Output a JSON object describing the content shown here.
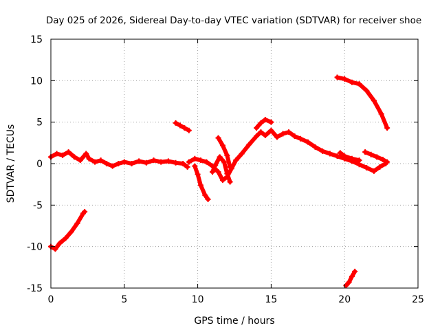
{
  "chart_data": {
    "type": "scatter",
    "title": "Day 025 of 2026, Sidereal Day-to-day VTEC variation (SDTVAR) for receiver shoe",
    "xlabel": "GPS time / hours",
    "ylabel": "SDTVAR / TECUs",
    "xlim": [
      0,
      25
    ],
    "ylim": [
      -15,
      15
    ],
    "xticks": [
      0,
      5,
      10,
      15,
      20,
      25
    ],
    "yticks": [
      -15,
      -10,
      -5,
      0,
      5,
      10,
      15
    ],
    "grid": true,
    "series_color": "#ff0000",
    "series": [
      {
        "name": "main-trace-a",
        "points": [
          [
            0.0,
            0.8
          ],
          [
            0.4,
            1.2
          ],
          [
            0.8,
            1.0
          ],
          [
            1.2,
            1.4
          ],
          [
            1.6,
            0.8
          ],
          [
            2.0,
            0.4
          ],
          [
            2.4,
            1.2
          ],
          [
            2.6,
            0.6
          ],
          [
            3.0,
            0.2
          ],
          [
            3.4,
            0.4
          ],
          [
            3.8,
            0.0
          ],
          [
            4.2,
            -0.3
          ],
          [
            4.6,
            0.0
          ],
          [
            5.0,
            0.2
          ],
          [
            5.5,
            0.0
          ],
          [
            6.0,
            0.3
          ],
          [
            6.5,
            0.1
          ],
          [
            7.0,
            0.4
          ],
          [
            7.5,
            0.2
          ],
          [
            8.0,
            0.3
          ],
          [
            8.5,
            0.1
          ],
          [
            9.0,
            0.0
          ],
          [
            9.3,
            -0.4
          ]
        ]
      },
      {
        "name": "main-trace-b",
        "points": [
          [
            9.4,
            0.2
          ],
          [
            9.8,
            0.6
          ],
          [
            10.2,
            0.4
          ],
          [
            10.6,
            0.2
          ],
          [
            11.0,
            -0.3
          ],
          [
            11.4,
            -1.0
          ],
          [
            11.7,
            -2.0
          ],
          [
            12.0,
            -1.6
          ],
          [
            12.3,
            -0.6
          ],
          [
            12.6,
            0.4
          ],
          [
            13.0,
            1.2
          ],
          [
            13.5,
            2.3
          ],
          [
            14.0,
            3.3
          ],
          [
            14.3,
            3.8
          ],
          [
            14.6,
            3.4
          ],
          [
            15.0,
            4.0
          ],
          [
            15.4,
            3.2
          ],
          [
            15.8,
            3.6
          ],
          [
            16.2,
            3.8
          ],
          [
            16.6,
            3.3
          ],
          [
            17.0,
            3.0
          ],
          [
            17.5,
            2.6
          ],
          [
            18.0,
            2.0
          ],
          [
            18.5,
            1.5
          ],
          [
            19.0,
            1.2
          ],
          [
            19.5,
            0.9
          ],
          [
            20.0,
            0.6
          ],
          [
            20.5,
            0.3
          ],
          [
            21.0,
            -0.1
          ],
          [
            21.5,
            -0.5
          ],
          [
            22.0,
            -0.9
          ],
          [
            22.4,
            -0.4
          ],
          [
            22.8,
            0.0
          ]
        ]
      },
      {
        "name": "trace-at-9-hours",
        "points": [
          [
            9.8,
            -0.3
          ],
          [
            10.0,
            -1.3
          ],
          [
            10.2,
            -2.6
          ],
          [
            10.5,
            -3.8
          ],
          [
            10.7,
            -4.3
          ]
        ]
      },
      {
        "name": "trace-at-11-hours",
        "points": [
          [
            11.0,
            -1.0
          ],
          [
            11.2,
            -0.2
          ],
          [
            11.5,
            0.8
          ],
          [
            11.8,
            0.2
          ],
          [
            12.0,
            -1.2
          ],
          [
            12.2,
            -2.2
          ]
        ]
      },
      {
        "name": "trace-at-11-5-hours",
        "points": [
          [
            11.4,
            3.1
          ],
          [
            11.7,
            2.2
          ],
          [
            12.0,
            1.0
          ],
          [
            12.2,
            -0.4
          ]
        ]
      },
      {
        "name": "trace-at-14-hours",
        "points": [
          [
            14.0,
            4.3
          ],
          [
            14.3,
            4.9
          ],
          [
            14.6,
            5.3
          ],
          [
            15.0,
            5.0
          ]
        ]
      },
      {
        "name": "trace-at-20-hours",
        "points": [
          [
            19.7,
            1.3
          ],
          [
            20.0,
            0.9
          ],
          [
            20.5,
            0.6
          ],
          [
            21.0,
            0.4
          ]
        ]
      },
      {
        "name": "trace-at-21-5-hours",
        "points": [
          [
            21.4,
            1.4
          ],
          [
            21.8,
            1.1
          ],
          [
            22.2,
            0.8
          ],
          [
            22.6,
            0.5
          ],
          [
            22.9,
            0.2
          ]
        ]
      },
      {
        "name": "trace-at-8-5-hours",
        "points": [
          [
            8.5,
            4.9
          ],
          [
            8.8,
            4.6
          ],
          [
            9.1,
            4.3
          ],
          [
            9.4,
            4.0
          ]
        ]
      },
      {
        "name": "trace-at-19-5-hours",
        "points": [
          [
            19.5,
            10.4
          ],
          [
            20.0,
            10.2
          ],
          [
            20.5,
            9.8
          ],
          [
            21.0,
            9.6
          ],
          [
            21.5,
            8.8
          ],
          [
            22.0,
            7.6
          ],
          [
            22.5,
            6.0
          ],
          [
            22.9,
            4.3
          ]
        ]
      },
      {
        "name": "trace-at-0-hours",
        "points": [
          [
            0.0,
            -10.0
          ],
          [
            0.3,
            -10.3
          ],
          [
            0.6,
            -9.6
          ],
          [
            1.0,
            -9.0
          ],
          [
            1.4,
            -8.2
          ],
          [
            1.8,
            -7.2
          ],
          [
            2.2,
            -6.0
          ],
          [
            2.3,
            -5.8
          ]
        ]
      },
      {
        "name": "trace-at-20-5-hours",
        "points": [
          [
            20.1,
            -14.7
          ],
          [
            20.3,
            -14.3
          ],
          [
            20.5,
            -13.6
          ],
          [
            20.7,
            -13.0
          ]
        ]
      }
    ]
  }
}
